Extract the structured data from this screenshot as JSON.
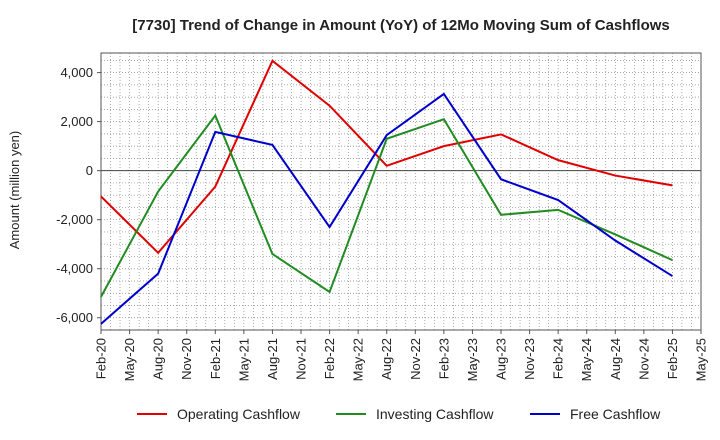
{
  "chart_data": {
    "type": "line",
    "title": "[7730]  Trend of Change in Amount (YoY) of 12Mo Moving Sum of Cashflows",
    "xlabel": "",
    "ylabel": "Amount (million yen)",
    "ylim": [
      -6500,
      4800
    ],
    "yticks": [
      4000,
      2000,
      0,
      -2000,
      -4000,
      -6000
    ],
    "ytick_labels": [
      "4,000",
      "2,000",
      "0",
      "-2,000",
      "-4,000",
      "-6,000"
    ],
    "grid": true,
    "legend_position": "bottom",
    "x_ticks": [
      "Feb-20",
      "May-20",
      "Aug-20",
      "Nov-20",
      "Feb-21",
      "May-21",
      "Aug-21",
      "Nov-21",
      "Feb-22",
      "May-22",
      "Aug-22",
      "Nov-22",
      "Feb-23",
      "May-23",
      "Aug-23",
      "Nov-23",
      "Feb-24",
      "May-24",
      "Aug-24",
      "Nov-24",
      "Feb-25",
      "May-25"
    ],
    "categories": [
      "Feb-20",
      "Aug-20",
      "Feb-21",
      "Aug-21",
      "Feb-22",
      "Aug-22",
      "Feb-23",
      "Aug-23",
      "Feb-24",
      "Aug-24",
      "Feb-25"
    ],
    "series": [
      {
        "name": "Operating Cashflow",
        "color": "#e00000",
        "values": [
          -1050,
          -3350,
          -650,
          4480,
          2650,
          200,
          1000,
          1480,
          430,
          -200,
          -600
        ]
      },
      {
        "name": "Investing Cashflow",
        "color": "#228b22",
        "values": [
          -5150,
          -850,
          2250,
          -3400,
          -4950,
          1300,
          2100,
          -1800,
          -1600,
          -2600,
          -3650
        ]
      },
      {
        "name": "Free Cashflow",
        "color": "#0000cc",
        "values": [
          -6250,
          -4200,
          1580,
          1050,
          -2300,
          1450,
          3130,
          -350,
          -1200,
          -2850,
          -4300
        ]
      }
    ]
  }
}
